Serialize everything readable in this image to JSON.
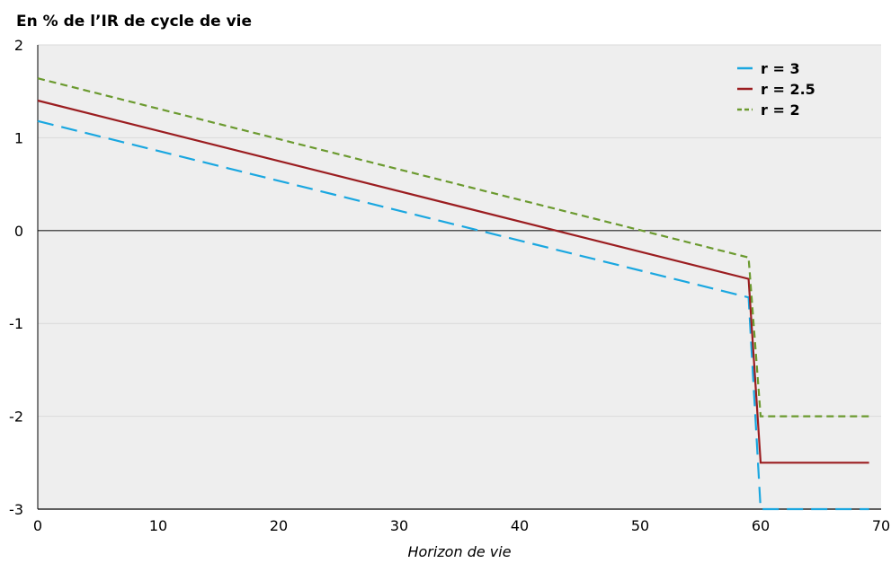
{
  "chart_data": {
    "type": "line",
    "title": "",
    "ylabel": "En % de l’IR de cycle de vie",
    "xlabel": "Horizon de vie",
    "xlim": [
      0,
      70
    ],
    "ylim": [
      -3,
      2
    ],
    "xticks": [
      0,
      10,
      20,
      30,
      40,
      50,
      60,
      70
    ],
    "yticks": [
      2,
      1,
      0,
      -1,
      -2,
      -3
    ],
    "grid": true,
    "legend_position": "top-right",
    "series": [
      {
        "name": "r = 3",
        "color": "#1aa7e0",
        "dash": "long-dash",
        "x": [
          0,
          59,
          60,
          69
        ],
        "y": [
          1.18,
          -0.72,
          -3.0,
          -3.0
        ]
      },
      {
        "name": "r = 2.5",
        "color": "#9b1d20",
        "dash": "solid",
        "x": [
          0,
          59,
          60,
          69
        ],
        "y": [
          1.4,
          -0.52,
          -2.5,
          -2.5
        ]
      },
      {
        "name": "r = 2",
        "color": "#6b9a2f",
        "dash": "short-dash",
        "x": [
          0,
          59,
          60,
          69
        ],
        "y": [
          1.64,
          -0.29,
          -2.0,
          -2.0
        ]
      }
    ]
  }
}
